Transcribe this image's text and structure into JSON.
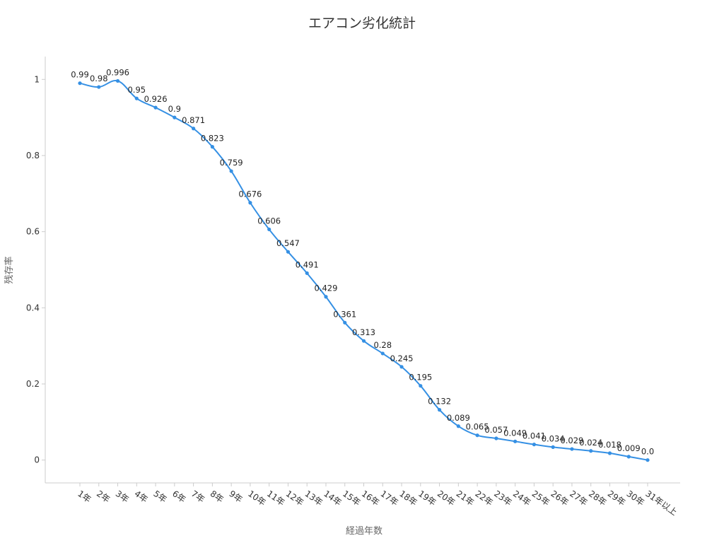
{
  "chart_data": {
    "type": "line",
    "title": "エアコン劣化統計",
    "xlabel": "経過年数",
    "ylabel": "残存率",
    "categories": [
      "1年",
      "2年",
      "3年",
      "4年",
      "5年",
      "6年",
      "7年",
      "8年",
      "9年",
      "10年",
      "11年",
      "12年",
      "13年",
      "14年",
      "15年",
      "16年",
      "17年",
      "18年",
      "19年",
      "20年",
      "21年",
      "22年",
      "23年",
      "24年",
      "25年",
      "26年",
      "27年",
      "28年",
      "29年",
      "30年",
      "31年以上"
    ],
    "series": [
      {
        "values": [
          0.99,
          0.98,
          0.996,
          0.95,
          0.926,
          0.9,
          0.871,
          0.823,
          0.759,
          0.676,
          0.606,
          0.547,
          0.491,
          0.429,
          0.361,
          0.313,
          0.28,
          0.245,
          0.195,
          0.132,
          0.089,
          0.065,
          0.057,
          0.049,
          0.041,
          0.034,
          0.029,
          0.024,
          0.018,
          0.009,
          0.0
        ],
        "labels": [
          "0.99",
          "0.98",
          "0.996",
          "0.95",
          "0.926",
          "0.9",
          "0.871",
          "0.823",
          "0.759",
          "0.676",
          "0.606",
          "0.547",
          "0.491",
          "0.429",
          "0.361",
          "0.313",
          "0.28",
          "0.245",
          "0.195",
          "0.132",
          "0.089",
          "0.065",
          "0.057",
          "0.049",
          "0.041",
          "0.034",
          "0.029",
          "0.024",
          "0.018",
          "0.009",
          "0.0"
        ],
        "color": "#3590e4"
      }
    ],
    "ylim": [
      -0.06,
      1.06
    ],
    "yticks": [
      0,
      0.2,
      0.4,
      0.6,
      0.8,
      1
    ],
    "ytick_labels": [
      "0",
      "0.2",
      "0.4",
      "0.6",
      "0.8",
      "1"
    ],
    "grid": false,
    "smooth": true,
    "axis_color": "#cccccc"
  }
}
